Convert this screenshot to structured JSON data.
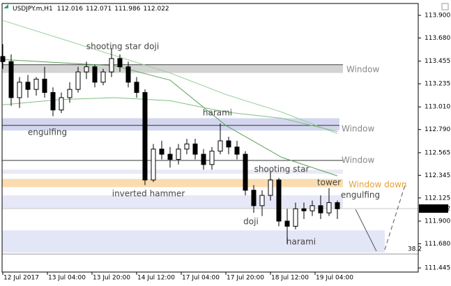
{
  "chart_data": {
    "type": "candlestick",
    "symbol": "USDJPY.m,H1",
    "header_ohlc": [
      112.016,
      112.071,
      111.986,
      112.022
    ],
    "last_price": 112.022,
    "x": [
      0,
      3,
      6,
      9,
      12,
      15,
      18,
      21,
      24,
      27,
      30,
      33,
      36,
      39,
      42,
      45,
      48,
      51,
      54,
      57,
      60,
      63,
      66,
      69,
      72,
      75,
      78,
      81,
      84,
      87,
      90,
      93,
      96,
      99,
      102,
      105,
      108,
      111,
      114,
      117,
      120
    ],
    "open": [
      113.5,
      113.45,
      113.1,
      113.25,
      113.18,
      113.28,
      113.15,
      112.98,
      113.1,
      113.18,
      113.35,
      113.4,
      113.25,
      113.35,
      113.48,
      113.4,
      113.25,
      113.15,
      112.3,
      112.6,
      112.55,
      112.5,
      112.6,
      112.65,
      112.55,
      112.45,
      112.58,
      112.68,
      112.62,
      112.55,
      112.2,
      112.05,
      112.15,
      112.3,
      111.9,
      111.85,
      112.02,
      112.0,
      112.05,
      111.98,
      112.08
    ],
    "high": [
      113.62,
      113.52,
      113.3,
      113.32,
      113.3,
      113.4,
      113.2,
      113.15,
      113.25,
      113.4,
      113.45,
      113.42,
      113.38,
      113.58,
      113.52,
      113.45,
      113.3,
      113.18,
      112.65,
      112.68,
      112.62,
      112.65,
      112.7,
      112.7,
      112.6,
      112.62,
      112.85,
      112.72,
      112.68,
      112.58,
      112.25,
      112.2,
      112.38,
      112.32,
      112.02,
      112.08,
      112.08,
      112.1,
      112.15,
      112.22,
      112.1
    ],
    "low": [
      113.38,
      113.02,
      113.0,
      113.1,
      113.12,
      113.1,
      112.92,
      112.95,
      113.05,
      113.15,
      113.28,
      113.2,
      113.22,
      113.3,
      113.35,
      113.2,
      113.1,
      112.25,
      112.28,
      112.5,
      112.42,
      112.45,
      112.55,
      112.5,
      112.4,
      112.4,
      112.55,
      112.55,
      112.5,
      112.15,
      111.98,
      111.95,
      112.1,
      111.85,
      111.68,
      111.82,
      111.92,
      111.95,
      111.92,
      111.95,
      111.92
    ],
    "close": [
      113.45,
      113.1,
      113.25,
      113.18,
      113.28,
      113.15,
      112.98,
      113.1,
      113.18,
      113.35,
      113.4,
      113.25,
      113.35,
      113.48,
      113.4,
      113.25,
      113.15,
      112.3,
      112.6,
      112.55,
      112.5,
      112.6,
      112.65,
      112.55,
      112.45,
      112.58,
      112.68,
      112.62,
      112.55,
      112.2,
      112.05,
      112.15,
      112.3,
      111.9,
      111.85,
      112.02,
      112.0,
      112.05,
      111.98,
      112.08,
      112.02
    ],
    "moving_averages": [
      {
        "color": "#9ccf9c",
        "x": [
          0,
          20,
          40,
          60,
          80,
          100,
          120
        ],
        "values": [
          113.85,
          113.68,
          113.51,
          113.34,
          113.13,
          112.96,
          112.75
        ]
      },
      {
        "color": "#5aa05a",
        "x": [
          0,
          20,
          40,
          60,
          80,
          100,
          120
        ],
        "values": [
          113.47,
          113.44,
          113.41,
          113.27,
          112.83,
          112.52,
          112.34
        ]
      },
      {
        "color": "#7fbf7f",
        "x": [
          0,
          20,
          40,
          60,
          80,
          100,
          120
        ],
        "values": [
          113.03,
          113.08,
          113.1,
          113.07,
          112.96,
          112.9,
          112.77
        ]
      }
    ],
    "zones": [
      {
        "low": 113.34,
        "high": 113.42,
        "color": "#d4d4d4"
      },
      {
        "low": 112.78,
        "high": 112.9,
        "color": "#d3d6ee"
      },
      {
        "low": 112.36,
        "high": 112.4,
        "color": "#e8eaf6"
      },
      {
        "low": 112.23,
        "high": 112.31,
        "color": "#fadcb0"
      },
      {
        "low": 112.02,
        "high": 112.15,
        "color": "#e6e8f7"
      },
      {
        "low": 111.595,
        "high": 111.81,
        "color": "#e3e6f6"
      }
    ],
    "levels": [
      {
        "value": 113.42,
        "color": "#444"
      },
      {
        "value": 112.83,
        "color": "#333"
      },
      {
        "value": 112.49,
        "color": "#333"
      },
      {
        "value": 111.58,
        "color": "#999"
      }
    ],
    "annotations": [
      "shooting star doji",
      "engulfing",
      "harami",
      "shooting star",
      "inverted hammer",
      "doji",
      "harami",
      "tower",
      "engulfing"
    ],
    "zone_labels": [
      "Window",
      "Window",
      "Window",
      "Window down"
    ],
    "fib_label": "38.2",
    "xlim": [
      -1,
      149
    ],
    "ylim": [
      111.405,
      114.015
    ],
    "xticks": [
      {
        "value": 0,
        "label": "12 Jul 2017"
      },
      {
        "value": 16,
        "label": "13 Jul 04:00"
      },
      {
        "value": 32,
        "label": "13 Jul 20:00"
      },
      {
        "value": 48,
        "label": "14 Jul 12:00"
      },
      {
        "value": 64,
        "label": "17 Jul 04:00"
      },
      {
        "value": 80,
        "label": "17 Jul 20:00"
      },
      {
        "value": 96,
        "label": "18 Jul 12:00"
      },
      {
        "value": 112,
        "label": "19 Jul 04:00"
      }
    ],
    "yticks": [
      {
        "value": 113.9,
        "label": "113.900"
      },
      {
        "value": 113.68,
        "label": "113.680"
      },
      113.455,
      113.235,
      {
        "value": 113.01,
        "label": "113.010"
      },
      {
        "value": 112.79,
        "label": "112.790"
      },
      112.565,
      112.345,
      112.125,
      {
        "value": 111.9,
        "label": "111.900"
      },
      {
        "value": 111.68,
        "label": "111.680"
      },
      111.445
    ],
    "bull_color": "#ffffff",
    "bear_color": "#000000"
  }
}
